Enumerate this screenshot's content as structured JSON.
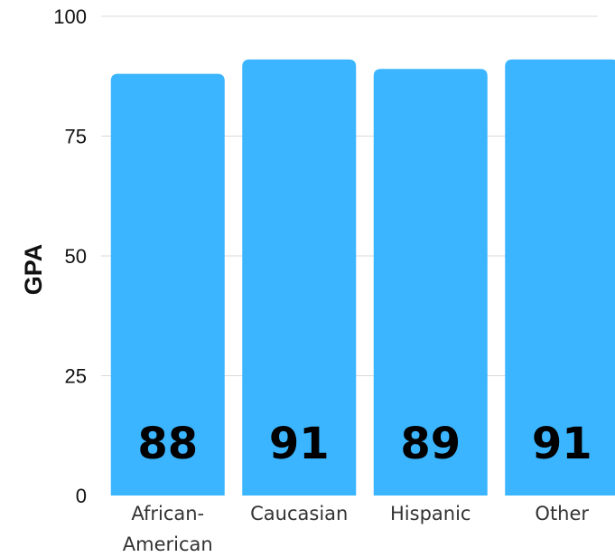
{
  "chart_data": {
    "type": "bar",
    "categories": [
      "African-American",
      "Caucasian",
      "Hispanic",
      "Other"
    ],
    "category_lines": [
      [
        "African-",
        "American"
      ],
      [
        "Caucasian"
      ],
      [
        "Hispanic"
      ],
      [
        "Other"
      ]
    ],
    "values": [
      88,
      91,
      89,
      91
    ],
    "data_labels": [
      "88",
      "91",
      "89",
      "91"
    ],
    "ylabel": "GPA",
    "xlabel": "",
    "ylim": [
      0,
      100
    ],
    "yticks": [
      "0",
      "25",
      "50",
      "75",
      "100"
    ],
    "grid": true,
    "bar_color": "#3bb5ff",
    "grid_color": "#d9d9d9"
  }
}
